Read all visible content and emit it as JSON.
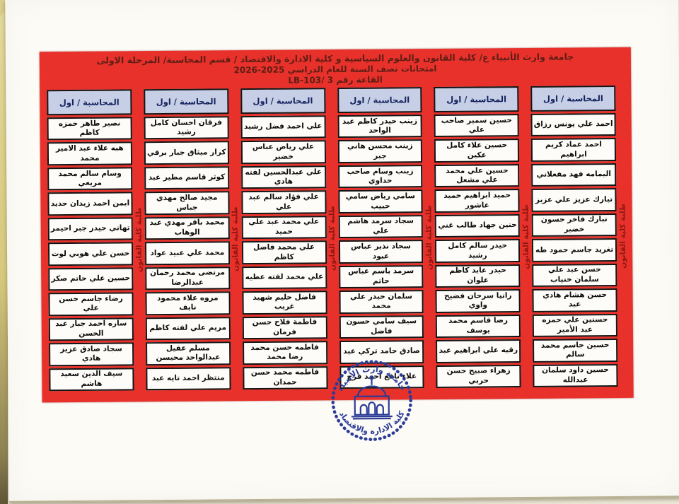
{
  "header": {
    "line1": "جامعة وارث الأنبياء ع/ كلية القانون والعلوم السياسية و كلية الادارة والاقتصاد / قسم المحاسبة/ المرحلة الاولى",
    "line2": "امتحانات نصف السنة للعام الدراسي 2025-2026",
    "line3": "القاعة رقم 3 /LB-103"
  },
  "column_header": "المحاسبة / اول",
  "side_label": "طلبة كلية القانون",
  "columns": [
    {
      "students": [
        "احمد علي يونس رزاق",
        "احمد عماد كريم ابراهيم",
        "اليمامه فهد مفعلاني",
        "تبارك عزيز علي عزيز",
        "تبارك فاخر حسون خضير",
        "تغريد جاسم حمود طه",
        "حسن عبد علي سلمان خنياب",
        "حسن هشام هادي عبد",
        "حسنين علي حمزه عبد الأمير",
        "حسين جاسم محمد سالم",
        "حسين داود سلمان عبدالله"
      ]
    },
    {
      "students": [
        "حسين سمير صاحب علي",
        "حسين علاء كامل عكين",
        "حسين علي محمد علي مشعل",
        "حميد ابراهيم حميد عاشور",
        "حنين جهاد طالب غني",
        "حيدر سالم كامل رشيد",
        "حيدر عايد كاظم علوان",
        "رانيا سرحان فضيح واوي",
        "رضا قاسم محمد يوسف",
        "رقيه علي ابراهيم عبد",
        "زهراء صبيح حسن حربي"
      ]
    },
    {
      "students": [
        "زينب حيدر كاظم عبد الواحد",
        "زينب محسن هاني جبر",
        "زينب وسام صاحب حداوي",
        "سامي رياض سامي حبيب",
        "سجاد سرمد هاشم علي",
        "سجاد نذير عباس عبود",
        "سرمد باسم عباس حاتم",
        "سلمان حيدر علي محمد",
        "سيف سامي حسون فاضل",
        "صادق حامد تركي عبد",
        "علاء نافع احمد فرج"
      ]
    },
    {
      "students": [
        "علي احمد فضل رشيد",
        "علي رياض عباس خضير",
        "علي عبدالحسين لفته هادي",
        "علي فؤاد سالم عبد علي",
        "علي محمد عبد علي حميد",
        "علي محمد فاضل كاظم",
        "علي محمد لفته عطيه",
        "فاضل حليم شهيد غريب",
        "فاطمة فلاح حسن فرمان",
        "فاطمه حسن محمد رضا محمد",
        "فاطمه محمد حسن حمدان"
      ]
    },
    {
      "students": [
        "فرقان احسان كامل رشيد",
        "كرار ميثاق جبار برقي",
        "كوثر قاسم مطير عبد",
        "مجيد صالح مهدي جباس",
        "محمد باقر مهدي عبد الوهاب",
        "محمد علي عبيد عواد",
        "مرتضى محمد رحمان عبدالرضا",
        "مروه علاء محمود نايف",
        "مريم علي لفته كاظم",
        "مسلم عقيل عبدالواحد محيسن",
        "منتظر احمد تايه عبد"
      ]
    },
    {
      "students": [
        "نصير طاهر حمزه كاظم",
        "هبه علاء عبد الامير محمد",
        "وسام سالم محمد مريعي",
        "ايمن احمد زيدان حديد",
        "تهاني حيدر جبر احيمر",
        "حسن علي هوبي لوت",
        "حسين علي حاتم صكر",
        "رضاء جاسم حسن علي",
        "ساره احمد جبار عبد الحسن",
        "سجاد صادق عزيز هادي",
        "سيف الدين سعيد هاشم"
      ]
    }
  ],
  "logo": {
    "top_text": "جامعة وارث الأنبياء",
    "bottom_text": "كلية الادارة والاقتصاد"
  },
  "colors": {
    "red": "#e8312b",
    "header_text": "#5d1e15",
    "strip_text": "#8c1710",
    "column_header_bg": "#c7cfe6",
    "column_header_text": "#14235e",
    "logo_blue": "#2b3b97"
  }
}
